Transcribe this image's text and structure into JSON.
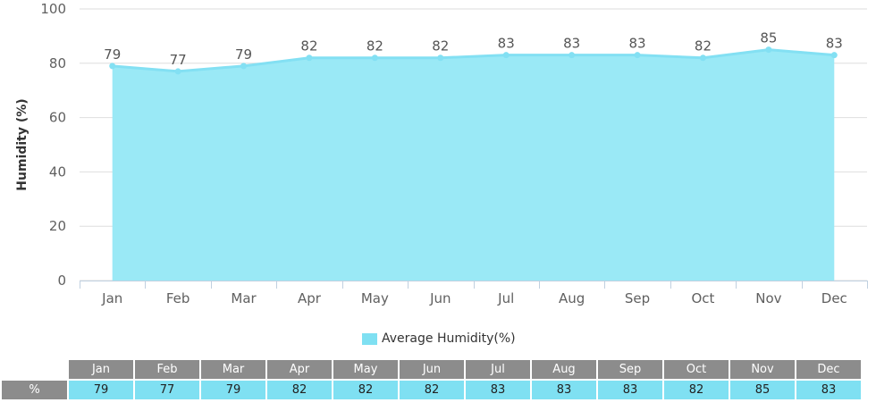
{
  "chart_data": {
    "type": "area",
    "categories": [
      "Jan",
      "Feb",
      "Mar",
      "Apr",
      "May",
      "Jun",
      "Jul",
      "Aug",
      "Sep",
      "Oct",
      "Nov",
      "Dec"
    ],
    "series": [
      {
        "name": "Average Humidity(%)",
        "values": [
          79,
          77,
          79,
          82,
          82,
          82,
          83,
          83,
          83,
          82,
          85,
          83
        ]
      }
    ],
    "ylabel": "Humidity (%)",
    "ylim": [
      0,
      100
    ],
    "yticks": [
      0,
      20,
      40,
      60,
      80,
      100
    ],
    "grid": true,
    "legend": "bottom-center",
    "colors": {
      "area": "#9ae9f6",
      "line": "#83e0f3",
      "table_value_bg": "#7fe0f2",
      "header_bg": "#8c8c8c"
    }
  },
  "table": {
    "row_label": "%"
  }
}
